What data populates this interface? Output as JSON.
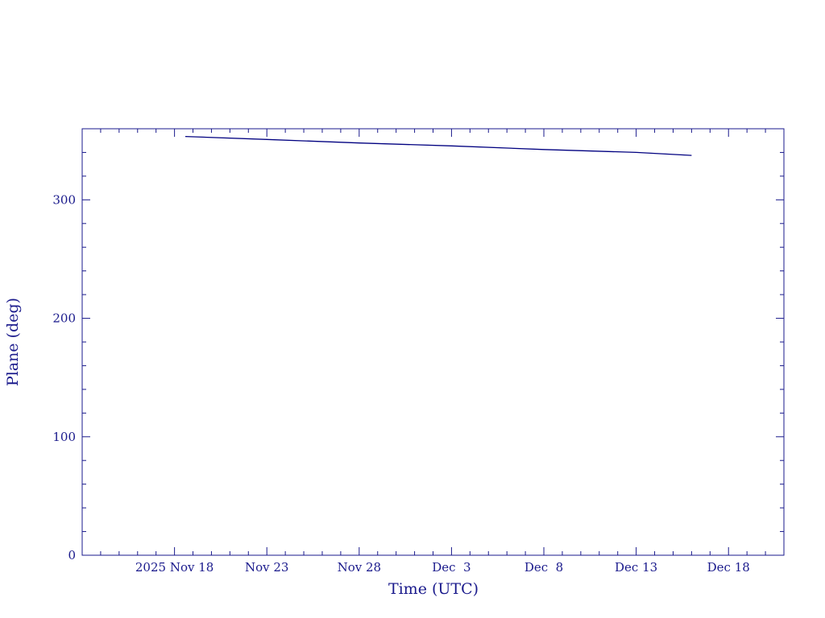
{
  "chart_data": {
    "type": "line",
    "xlabel": "Time (UTC)",
    "ylabel": "Plane (deg)",
    "x_tick_labels": [
      "2025 Nov 18",
      "Nov 23",
      "Nov 28",
      "Dec  3",
      "Dec  8",
      "Dec 13",
      "Dec 18"
    ],
    "x_ticks": [
      "2025-11-18",
      "2025-11-23",
      "2025-11-28",
      "2025-12-03",
      "2025-12-08",
      "2025-12-13",
      "2025-12-18"
    ],
    "xlim": [
      "2025-11-13",
      "2025-12-21"
    ],
    "y_ticks": [
      0,
      100,
      200,
      300
    ],
    "ylim": [
      0,
      360
    ],
    "grid": false,
    "color": "#000080",
    "axis_color": "#1a1a8c",
    "series": [
      {
        "x": [
          "2025-11-18T14:00",
          "2025-11-23T00:00",
          "2025-11-28T00:00",
          "2025-12-03T00:00",
          "2025-12-08T00:00",
          "2025-12-13T00:00",
          "2025-12-16T00:00"
        ],
        "y": [
          353.5,
          351.0,
          348.0,
          345.5,
          342.5,
          340.0,
          337.5
        ]
      }
    ]
  }
}
